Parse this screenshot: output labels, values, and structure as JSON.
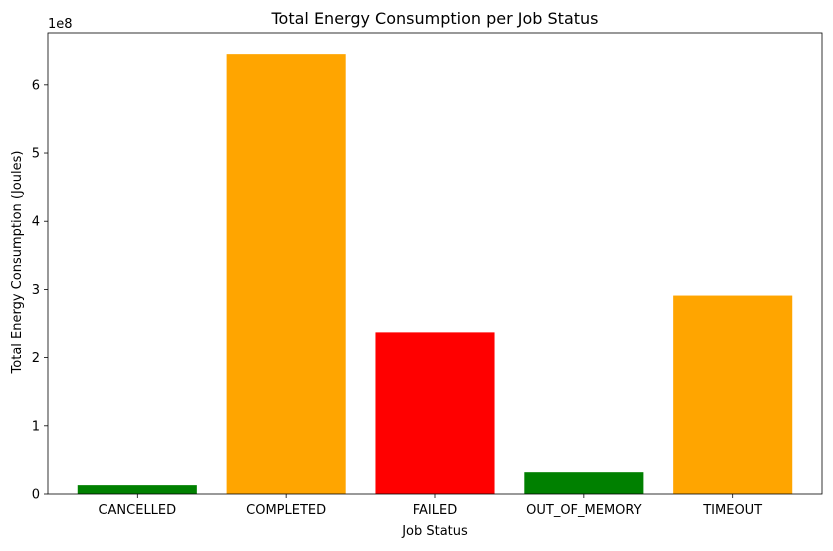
{
  "chart_data": {
    "type": "bar",
    "title": "Total Energy Consumption per Job Status",
    "xlabel": "Job Status",
    "ylabel": "Total Energy Consumption (Joules)",
    "y_multiplier_label": "1e8",
    "categories": [
      "CANCELLED",
      "COMPLETED",
      "FAILED",
      "OUT_OF_MEMORY",
      "TIMEOUT"
    ],
    "values": [
      13000000,
      645000000,
      237000000,
      32000000,
      291000000
    ],
    "bar_colors": [
      "#008000",
      "#FFA500",
      "#FF0000",
      "#008000",
      "#FFA500"
    ],
    "ylim": [
      0,
      676000000
    ],
    "y_ticks": [
      0,
      100000000,
      200000000,
      300000000,
      400000000,
      500000000,
      600000000
    ],
    "y_tick_labels": [
      "0",
      "1",
      "2",
      "3",
      "4",
      "5",
      "6"
    ],
    "grid": false,
    "legend": "none"
  }
}
